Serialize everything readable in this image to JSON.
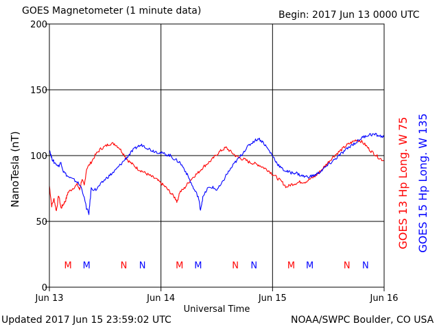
{
  "header": {
    "title": "GOES Magnetometer (1 minute data)",
    "begin": "Begin:  2017 Jun 13 0000 UTC"
  },
  "footer": {
    "updated": "Updated 2017 Jun 15 23:59:02 UTC",
    "source": "NOAA/SWPC Boulder, CO USA"
  },
  "colors": {
    "goes13": "#ff0000",
    "goes15": "#0000ff",
    "axis": "#000000"
  },
  "chart_data": {
    "type": "line",
    "title": "GOES Magnetometer (1 minute data)",
    "xlabel": "Universal Time",
    "ylabel": "NanoTesla (nT)",
    "xlim": [
      0,
      72
    ],
    "ylim": [
      0,
      200
    ],
    "y_ticks": [
      0,
      50,
      100,
      150,
      200
    ],
    "x_ticks": [
      {
        "hour": 0,
        "label": "Jun 13"
      },
      {
        "hour": 24,
        "label": "Jun 14"
      },
      {
        "hour": 48,
        "label": "Jun 15"
      },
      {
        "hour": 72,
        "label": "Jun 16"
      }
    ],
    "grid": true,
    "legend": [
      {
        "text": "GOES 13 Hp  Long. W 75",
        "color": "#ff0000"
      },
      {
        "text": "GOES 15 Hp  Long. W 135",
        "color": "#0000ff"
      }
    ],
    "series": [
      {
        "name": "GOES 13 Hp",
        "color": "#ff0000",
        "points": [
          [
            0,
            77
          ],
          [
            0.5,
            62
          ],
          [
            1,
            67
          ],
          [
            1.5,
            58
          ],
          [
            2,
            70
          ],
          [
            2.5,
            60
          ],
          [
            3,
            63
          ],
          [
            3.5,
            66
          ],
          [
            4,
            72
          ],
          [
            5,
            75
          ],
          [
            6,
            78
          ],
          [
            6.5,
            74
          ],
          [
            7,
            82
          ],
          [
            7.5,
            77
          ],
          [
            8,
            90
          ],
          [
            9,
            95
          ],
          [
            10,
            101
          ],
          [
            11,
            105
          ],
          [
            12,
            107
          ],
          [
            13,
            109
          ],
          [
            14,
            109
          ],
          [
            15,
            106
          ],
          [
            16,
            101
          ],
          [
            17,
            96
          ],
          [
            18,
            93
          ],
          [
            19,
            90
          ],
          [
            20,
            88
          ],
          [
            21,
            86
          ],
          [
            22,
            84
          ],
          [
            23,
            82
          ],
          [
            24,
            79
          ],
          [
            25,
            76
          ],
          [
            26,
            72
          ],
          [
            27,
            68
          ],
          [
            27.5,
            65
          ],
          [
            28,
            72
          ],
          [
            29,
            75
          ],
          [
            30,
            80
          ],
          [
            31,
            84
          ],
          [
            32,
            87
          ],
          [
            33,
            91
          ],
          [
            34,
            94
          ],
          [
            35,
            97
          ],
          [
            36,
            101
          ],
          [
            37,
            104
          ],
          [
            38,
            106
          ],
          [
            39,
            103
          ],
          [
            40,
            100
          ],
          [
            41,
            98
          ],
          [
            42,
            97
          ],
          [
            43,
            95
          ],
          [
            44,
            94
          ],
          [
            45,
            93
          ],
          [
            46,
            91
          ],
          [
            47,
            89
          ],
          [
            48,
            86
          ],
          [
            49,
            83
          ],
          [
            50,
            80
          ],
          [
            51,
            76
          ],
          [
            52,
            78
          ],
          [
            53,
            79
          ],
          [
            54,
            80
          ],
          [
            55,
            80
          ],
          [
            56,
            82
          ],
          [
            57,
            84
          ],
          [
            58,
            87
          ],
          [
            59,
            91
          ],
          [
            60,
            95
          ],
          [
            61,
            99
          ],
          [
            62,
            102
          ],
          [
            63,
            105
          ],
          [
            64,
            108
          ],
          [
            65,
            110
          ],
          [
            66,
            112
          ],
          [
            67,
            111
          ],
          [
            68,
            108
          ],
          [
            69,
            104
          ],
          [
            70,
            101
          ],
          [
            71,
            98
          ],
          [
            72,
            96
          ]
        ]
      },
      {
        "name": "GOES 15 Hp",
        "color": "#0000ff",
        "points": [
          [
            0,
            105
          ],
          [
            0.5,
            98
          ],
          [
            1,
            95
          ],
          [
            2,
            92
          ],
          [
            2.5,
            95
          ],
          [
            3,
            88
          ],
          [
            4,
            84
          ],
          [
            5,
            82
          ],
          [
            6,
            80
          ],
          [
            7,
            75
          ],
          [
            8,
            60
          ],
          [
            8.5,
            56
          ],
          [
            9,
            75
          ],
          [
            10,
            74
          ],
          [
            11,
            78
          ],
          [
            12,
            82
          ],
          [
            13,
            85
          ],
          [
            14,
            88
          ],
          [
            15,
            92
          ],
          [
            16,
            96
          ],
          [
            17,
            100
          ],
          [
            18,
            104
          ],
          [
            19,
            107
          ],
          [
            20,
            108
          ],
          [
            21,
            106
          ],
          [
            22,
            104
          ],
          [
            23,
            103
          ],
          [
            24,
            102
          ],
          [
            25,
            101
          ],
          [
            26,
            100
          ],
          [
            27,
            97
          ],
          [
            28,
            95
          ],
          [
            29,
            90
          ],
          [
            30,
            83
          ],
          [
            31,
            75
          ],
          [
            32,
            69
          ],
          [
            32.5,
            59
          ],
          [
            33,
            68
          ],
          [
            34,
            75
          ],
          [
            35,
            76
          ],
          [
            36,
            74
          ],
          [
            37,
            78
          ],
          [
            38,
            85
          ],
          [
            39,
            90
          ],
          [
            40,
            95
          ],
          [
            41,
            99
          ],
          [
            42,
            104
          ],
          [
            43,
            108
          ],
          [
            44,
            111
          ],
          [
            45,
            113
          ],
          [
            46,
            110
          ],
          [
            47,
            105
          ],
          [
            48,
            100
          ],
          [
            49,
            94
          ],
          [
            50,
            90
          ],
          [
            51,
            88
          ],
          [
            52,
            87
          ],
          [
            53,
            87
          ],
          [
            54,
            85
          ],
          [
            55,
            84
          ],
          [
            56,
            84
          ],
          [
            57,
            85
          ],
          [
            58,
            87
          ],
          [
            59,
            90
          ],
          [
            60,
            93
          ],
          [
            61,
            96
          ],
          [
            62,
            99
          ],
          [
            63,
            102
          ],
          [
            64,
            105
          ],
          [
            65,
            108
          ],
          [
            66,
            110
          ],
          [
            67,
            113
          ],
          [
            68,
            115
          ],
          [
            69,
            116
          ],
          [
            70,
            116
          ],
          [
            71,
            115
          ],
          [
            72,
            114
          ]
        ]
      }
    ],
    "markers": [
      {
        "hour": 4,
        "label": "M",
        "color": "#ff0000"
      },
      {
        "hour": 8,
        "label": "M",
        "color": "#0000ff"
      },
      {
        "hour": 16,
        "label": "N",
        "color": "#ff0000"
      },
      {
        "hour": 20,
        "label": "N",
        "color": "#0000ff"
      },
      {
        "hour": 28,
        "label": "M",
        "color": "#ff0000"
      },
      {
        "hour": 32,
        "label": "M",
        "color": "#0000ff"
      },
      {
        "hour": 40,
        "label": "N",
        "color": "#ff0000"
      },
      {
        "hour": 44,
        "label": "N",
        "color": "#0000ff"
      },
      {
        "hour": 52,
        "label": "M",
        "color": "#ff0000"
      },
      {
        "hour": 56,
        "label": "M",
        "color": "#0000ff"
      },
      {
        "hour": 64,
        "label": "N",
        "color": "#ff0000"
      },
      {
        "hour": 68,
        "label": "N",
        "color": "#0000ff"
      }
    ],
    "marker_level": 17
  }
}
